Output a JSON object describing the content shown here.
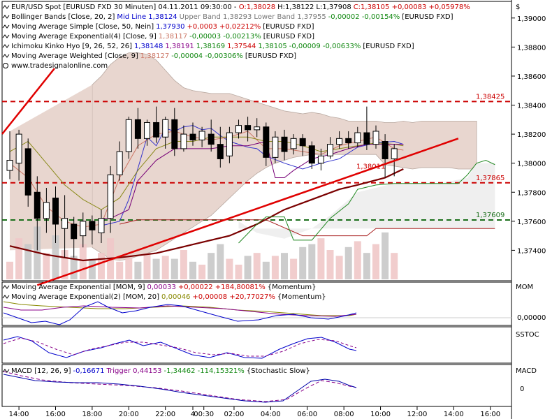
{
  "colors": {
    "background": "#ffffff",
    "cloud_fill": "#e8d6cf",
    "kumo_fill": "#efefef",
    "candle_up": "#ffffff",
    "candle_down": "#000000",
    "red_dashed": "#cc0000",
    "green_dashed": "#1a6f1a",
    "trendline": "#e00000",
    "wma": "#7a0000",
    "sma50": "#3333cc",
    "ema4": "#cc7766",
    "ema9": "#8a8a1a",
    "tenkan": "#aa2222",
    "kijun": "#770077",
    "senkou_b": "#228822",
    "volume": "#c8c8c8",
    "volume_red": "#f0c8c8",
    "mom_ema9": "#880088",
    "mom_ema20": "#888800",
    "mom_raw": "#0000cc",
    "sstoc_k": "#0000cc",
    "sstoc_d": "#880088",
    "macd_line": "#0000aa",
    "macd_trigger": "#880088"
  },
  "legend": {
    "line1": {
      "title": "EUR/USD Spot [EURUSD FXD  30 Minuten] 04.11.2011 09:30:00 - ",
      "o": "O:1,38028",
      "h": "H:1,38122",
      "l": "L:1,37908",
      "c": "C:1,38105 +0,00083 +0,05978%"
    },
    "line2": {
      "name": "Bollinger Bands [Close, 20, 2]",
      "mid": "Mid Line 1,38124",
      "upper": "Upper Band 1,38293",
      "lower": "Lower Band 1,37955",
      "chg": "-0,00002 -0,00154%",
      "src": "[EURUSD FXD]"
    },
    "line3": {
      "name": "Moving Average Simple [Close, 50, Nein]",
      "val": "1,37930",
      "chg": "+0,0003 +0,02212%",
      "src": "[EURUSD FXD]"
    },
    "line4": {
      "name": "Moving Average Exponential(4) [Close, 9]",
      "val": "1,38117",
      "chg": "-0,00003 -0,00213%",
      "src": "[EURUSD FXD]"
    },
    "line5": {
      "name": "Ichimoku Kinko Hyo [9, 26, 52, 26]",
      "v1": "1,38148",
      "v2": "1,38191",
      "v3": "1,38169",
      "v4": "1,37544",
      "v5": "1,38105",
      "chg": "-0,00009 -0,00633%",
      "src": "[EURUSD FXD]"
    },
    "line6": {
      "name": "Moving Average Weighted [Close, 9]",
      "val": "1,38127",
      "chg": "-0,00004 -0,00306%",
      "src": "[EURUSD FXD]"
    },
    "line7": {
      "text": "www.tradesignalonline.com"
    }
  },
  "sub_legends": {
    "mom1": {
      "name": "Moving Average Exponential [MOM, 9]",
      "val": "0,00033",
      "chg": "+0,00022 +184,80081%",
      "src": "{Momentum}"
    },
    "mom2": {
      "name": "Moving Average Exponential(2) [MOM, 20]",
      "val": "0,00046",
      "chg": "+0,00008 +20,77027%",
      "src": "{Momentum}"
    },
    "macd": {
      "name": "MACD [12, 26, 9]",
      "val": "-0,16671",
      "trig": "Trigger 0,44153",
      "chg": "-1,34462 -114,15321%",
      "src": "{Stochastic Slow}"
    }
  },
  "pane_labels": {
    "mom": "MOM",
    "sstoc": "SSTOC",
    "macd": "MACD"
  },
  "currency_symbol": "$",
  "chart_data": [
    {
      "type": "candlestick",
      "title": "EUR/USD Spot [EURUSD FXD  30 Minuten]",
      "ylim": [
        1.372,
        1.391
      ],
      "yticks": [
        "1,39000",
        "1,38800",
        "1,38600",
        "1,38400",
        "1,38200",
        "1,38000",
        "1,37800",
        "1,37600",
        "1,37400"
      ],
      "ytick_values": [
        1.39,
        1.388,
        1.386,
        1.384,
        1.382,
        1.38,
        1.378,
        1.376,
        1.374
      ],
      "x_labels": [
        "14:00",
        "16:00",
        "18:00",
        "20:00",
        "22:00",
        "4",
        "00:30",
        "02:00",
        "04:00",
        "06:00",
        "08:00",
        "10:00",
        "12:00",
        "14:00",
        "16:00"
      ],
      "x_label_index": [
        1,
        5,
        9,
        13,
        17,
        20,
        21.2,
        24.5,
        28.5,
        32.5,
        36.5,
        40.5,
        44.5,
        48.5,
        52.5
      ],
      "n_slots": 54,
      "candles": [
        {
          "o": 1.3795,
          "h": 1.3822,
          "l": 1.3789,
          "c": 1.3802
        },
        {
          "o": 1.38,
          "h": 1.3823,
          "l": 1.3788,
          "c": 1.382
        },
        {
          "o": 1.381,
          "h": 1.3817,
          "l": 1.377,
          "c": 1.3778
        },
        {
          "o": 1.378,
          "h": 1.3791,
          "l": 1.374,
          "c": 1.3762
        },
        {
          "o": 1.3762,
          "h": 1.3783,
          "l": 1.3752,
          "c": 1.3773
        },
        {
          "o": 1.3776,
          "h": 1.3784,
          "l": 1.3745,
          "c": 1.3758
        },
        {
          "o": 1.3755,
          "h": 1.3778,
          "l": 1.3735,
          "c": 1.3762
        },
        {
          "o": 1.3758,
          "h": 1.3763,
          "l": 1.3735,
          "c": 1.3748
        },
        {
          "o": 1.375,
          "h": 1.3766,
          "l": 1.3742,
          "c": 1.376
        },
        {
          "o": 1.376,
          "h": 1.3764,
          "l": 1.3744,
          "c": 1.3754
        },
        {
          "o": 1.3752,
          "h": 1.3768,
          "l": 1.3745,
          "c": 1.3762
        },
        {
          "o": 1.3762,
          "h": 1.3798,
          "l": 1.3752,
          "c": 1.3792
        },
        {
          "o": 1.3792,
          "h": 1.3815,
          "l": 1.3788,
          "c": 1.3808
        },
        {
          "o": 1.3808,
          "h": 1.3832,
          "l": 1.3803,
          "c": 1.383
        },
        {
          "o": 1.383,
          "h": 1.3838,
          "l": 1.381,
          "c": 1.3817
        },
        {
          "o": 1.3817,
          "h": 1.383,
          "l": 1.3812,
          "c": 1.3828
        },
        {
          "o": 1.3828,
          "h": 1.3839,
          "l": 1.3814,
          "c": 1.3818
        },
        {
          "o": 1.3818,
          "h": 1.3832,
          "l": 1.381,
          "c": 1.383
        },
        {
          "o": 1.383,
          "h": 1.3838,
          "l": 1.3805,
          "c": 1.381
        },
        {
          "o": 1.381,
          "h": 1.3826,
          "l": 1.3808,
          "c": 1.382
        },
        {
          "o": 1.382,
          "h": 1.3828,
          "l": 1.3812,
          "c": 1.3816
        },
        {
          "o": 1.3816,
          "h": 1.3825,
          "l": 1.3811,
          "c": 1.3822
        },
        {
          "o": 1.382,
          "h": 1.383,
          "l": 1.3808,
          "c": 1.3813
        },
        {
          "o": 1.3813,
          "h": 1.3825,
          "l": 1.3797,
          "c": 1.3803
        },
        {
          "o": 1.3805,
          "h": 1.3825,
          "l": 1.38,
          "c": 1.3821
        },
        {
          "o": 1.3821,
          "h": 1.383,
          "l": 1.3817,
          "c": 1.3826
        },
        {
          "o": 1.3826,
          "h": 1.3832,
          "l": 1.3815,
          "c": 1.3823
        },
        {
          "o": 1.3823,
          "h": 1.3831,
          "l": 1.3818,
          "c": 1.3825
        },
        {
          "o": 1.3825,
          "h": 1.3828,
          "l": 1.3798,
          "c": 1.3804
        },
        {
          "o": 1.3804,
          "h": 1.3822,
          "l": 1.38,
          "c": 1.3818
        },
        {
          "o": 1.3818,
          "h": 1.3823,
          "l": 1.3802,
          "c": 1.3808
        },
        {
          "o": 1.381,
          "h": 1.382,
          "l": 1.3806,
          "c": 1.3817
        },
        {
          "o": 1.3817,
          "h": 1.382,
          "l": 1.3805,
          "c": 1.3812
        },
        {
          "o": 1.3812,
          "h": 1.3815,
          "l": 1.3796,
          "c": 1.38
        },
        {
          "o": 1.38,
          "h": 1.381,
          "l": 1.3795,
          "c": 1.3805
        },
        {
          "o": 1.3805,
          "h": 1.3818,
          "l": 1.3803,
          "c": 1.3813
        },
        {
          "o": 1.3813,
          "h": 1.3822,
          "l": 1.381,
          "c": 1.3817
        },
        {
          "o": 1.3817,
          "h": 1.3822,
          "l": 1.381,
          "c": 1.3814
        },
        {
          "o": 1.3814,
          "h": 1.3825,
          "l": 1.3811,
          "c": 1.3821
        },
        {
          "o": 1.3821,
          "h": 1.3839,
          "l": 1.3809,
          "c": 1.3813
        },
        {
          "o": 1.3813,
          "h": 1.3826,
          "l": 1.381,
          "c": 1.3822
        },
        {
          "o": 1.3815,
          "h": 1.382,
          "l": 1.379,
          "c": 1.3803
        },
        {
          "o": 1.3803,
          "h": 1.3813,
          "l": 1.3791,
          "c": 1.381
        }
      ],
      "volume": [
        6,
        14,
        12,
        18,
        9,
        15,
        10,
        8,
        12,
        7,
        9,
        14,
        6,
        8,
        6,
        9,
        7,
        8,
        7,
        10,
        6,
        5,
        9,
        12,
        7,
        5,
        8,
        9,
        6,
        8,
        9,
        7,
        11,
        12,
        14,
        10,
        8,
        11,
        13,
        9,
        12,
        16,
        9
      ],
      "levels": [
        {
          "value": 1.38425,
          "label": "1,38425",
          "color": "red",
          "style": "dashed"
        },
        {
          "value": 1.37865,
          "label": "1,37865",
          "color": "red",
          "style": "dashed"
        },
        {
          "value": 1.37609,
          "label": "1,37609",
          "color": "green",
          "style": "dashed"
        }
      ],
      "price_label": "1,38011",
      "trendline": {
        "start": [
          3,
          1.3716
        ],
        "end": [
          49,
          1.3817
        ]
      }
    },
    {
      "type": "line",
      "pane": "MOM",
      "yticks": [
        "0,00000"
      ],
      "series": [
        {
          "name": "Moving Average Exponential [MOM, 9]"
        },
        {
          "name": "Moving Average Exponential(2) [MOM, 20]"
        }
      ]
    },
    {
      "type": "line",
      "pane": "SSTOC",
      "yticks": []
    },
    {
      "type": "line",
      "pane": "MACD",
      "yticks": [
        "0"
      ]
    }
  ]
}
